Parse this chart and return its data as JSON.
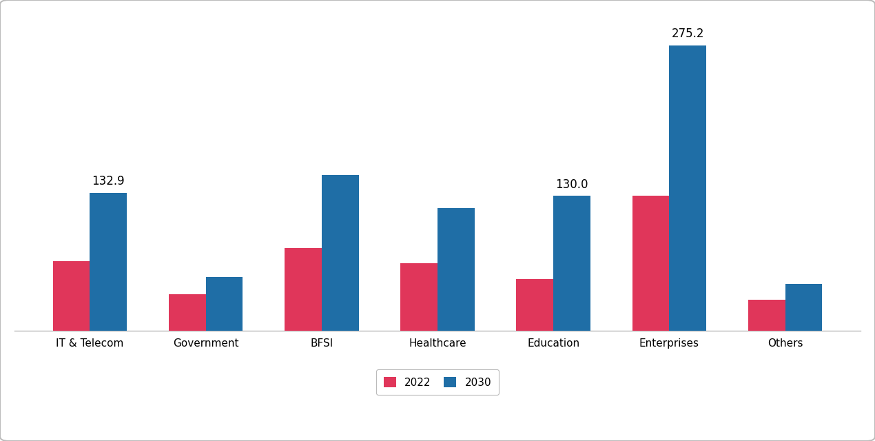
{
  "categories": [
    "IT & Telecom",
    "Government",
    "BFSI",
    "Healthcare",
    "Education",
    "Enterprises",
    "Others"
  ],
  "values_2022": [
    67.0,
    35.0,
    80.0,
    65.0,
    50.0,
    130.0,
    30.0
  ],
  "values_2030": [
    132.9,
    52.0,
    150.0,
    118.0,
    130.0,
    275.2,
    45.0
  ],
  "annotations_2030": [
    "132.9",
    null,
    null,
    null,
    "130.0",
    "275.2",
    null
  ],
  "color_2022": "#e0365a",
  "color_2030": "#1f6ea6",
  "legend_2022": "2022",
  "legend_2030": "2030",
  "bar_width": 0.32,
  "ylim": [
    0,
    305
  ],
  "background_color": "#ffffff",
  "border_color": "#bbbbbb",
  "axis_fontsize": 12,
  "tick_fontsize": 11,
  "annotation_fontsize": 12
}
